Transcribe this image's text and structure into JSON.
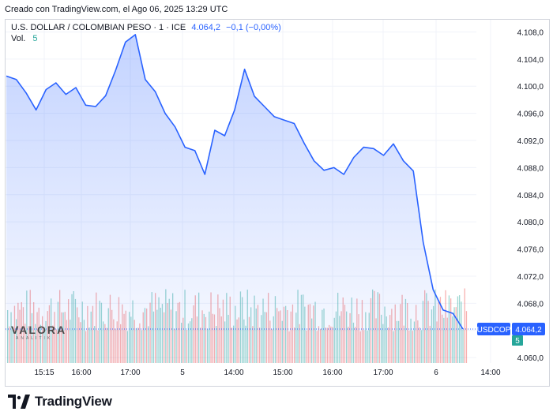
{
  "header": {
    "created_text": "Creado con TradingView.com, el Ago 06, 2025 13:29 UTC"
  },
  "legend": {
    "symbol": "U.S. DOLLAR / COLOMBIAN PESO · 1 · ICE",
    "last": "4.064,2",
    "change": "−0,1 (−0,00%)",
    "volume_label": "Vol.",
    "volume_value": "5"
  },
  "price_tag": {
    "symbol": "USDCOP",
    "value": "4.064,2"
  },
  "volume_tag": {
    "value": "5"
  },
  "watermark": {
    "name": "VALORA",
    "sub": "ANALITIK"
  },
  "footer": {
    "brand": "TradingView"
  },
  "colors": {
    "line": "#2962ff",
    "area": "#2962ff",
    "vol_up": "#26a69a",
    "vol_down": "#ef5350",
    "axis_text": "#131722"
  },
  "chart_data": {
    "type": "area",
    "symbol": "USDCOP",
    "x_tick_labels": [
      "15:15",
      "16:00",
      "17:00",
      "5",
      "14:00",
      "15:00",
      "16:00",
      "17:00",
      "6",
      "14:00"
    ],
    "y_tick_labels": [
      "4.108,0",
      "4.104,0",
      "4.100,0",
      "4.096,0",
      "4.092,0",
      "4.088,0",
      "4.084,0",
      "4.080,0",
      "4.076,0",
      "4.072,0",
      "4.068,0",
      "4.064,0",
      "4.060,0"
    ],
    "ylim": [
      4059.2,
      4109.8
    ],
    "grid": true,
    "price_series": [
      [
        "15:00",
        4101.5
      ],
      [
        "15:15",
        4101.0
      ],
      [
        "15:30",
        4099.0
      ],
      [
        "15:45",
        4096.5
      ],
      [
        "16:00",
        4099.5
      ],
      [
        "16:15",
        4100.5
      ],
      [
        "16:30",
        4098.8
      ],
      [
        "16:45",
        4099.8
      ],
      [
        "17:00",
        4097.2
      ],
      [
        "17:15",
        4097.0
      ],
      [
        "17:30",
        4098.6
      ],
      [
        "17:45",
        4102.3
      ],
      [
        "18:00",
        4106.5
      ],
      [
        "18:15",
        4107.6
      ],
      [
        "18:30",
        4101.0
      ],
      [
        "18:45",
        4099.2
      ],
      [
        "5 00:00",
        4096.0
      ],
      [
        "5 13:00",
        4094.0
      ],
      [
        "5 13:15",
        4091.0
      ],
      [
        "5 13:30",
        4090.5
      ],
      [
        "5 13:45",
        4087.0
      ],
      [
        "5 14:00",
        4093.5
      ],
      [
        "5 14:15",
        4092.7
      ],
      [
        "5 14:30",
        4096.5
      ],
      [
        "5 14:45",
        4102.5
      ],
      [
        "5 15:00",
        4098.5
      ],
      [
        "5 15:15",
        4097.0
      ],
      [
        "5 15:30",
        4095.5
      ],
      [
        "5 15:45",
        4095.0
      ],
      [
        "5 16:00",
        4094.5
      ],
      [
        "5 16:15",
        4091.6
      ],
      [
        "5 16:30",
        4089.0
      ],
      [
        "5 16:45",
        4087.6
      ],
      [
        "5 17:00",
        4088.0
      ],
      [
        "5 17:15",
        4087.0
      ],
      [
        "5 17:30",
        4089.5
      ],
      [
        "5 17:45",
        4091.0
      ],
      [
        "5 18:00",
        4090.8
      ],
      [
        "5 18:15",
        4089.8
      ],
      [
        "5 18:30",
        4091.5
      ],
      [
        "5 18:45",
        4089.0
      ],
      [
        "6 00:00",
        4087.5
      ],
      [
        "6 13:00",
        4077.0
      ],
      [
        "6 13:05",
        4070.0
      ],
      [
        "6 13:10",
        4067.0
      ],
      [
        "6 13:15",
        4066.5
      ],
      [
        "6 13:20",
        4064.2
      ]
    ],
    "last_value": 4064.2,
    "volume": {
      "last": 5
    }
  }
}
